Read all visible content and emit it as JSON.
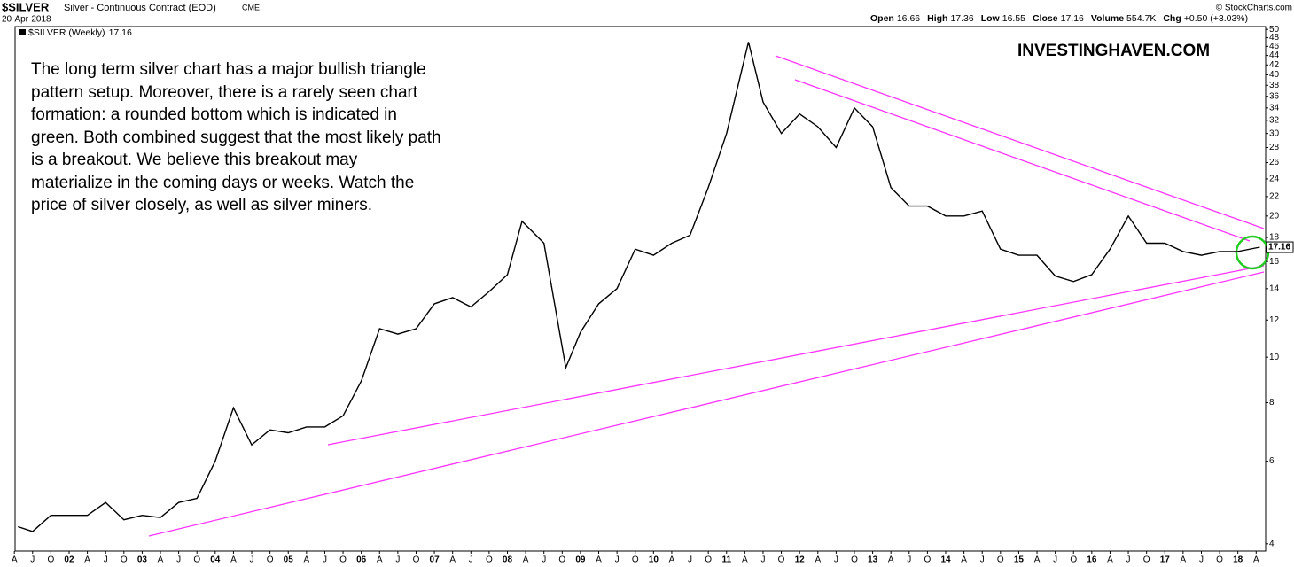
{
  "header": {
    "symbol": "$SILVER",
    "description": "Silver - Continuous Contract (EOD)",
    "exchange": "CME",
    "date": "20-Apr-2018",
    "quote": [
      {
        "label": "Open",
        "value": "16.66"
      },
      {
        "label": "High",
        "value": "17.36"
      },
      {
        "label": "Low",
        "value": "16.55"
      },
      {
        "label": "Close",
        "value": "17.16"
      },
      {
        "label": "Volume",
        "value": "554.7K"
      },
      {
        "label": "Chg",
        "value": "+0.50 (+3.03%)"
      }
    ],
    "copyright": "© StockCharts.com"
  },
  "watermark": "INVESTINGHAVEN.COM",
  "note_lines": [
    "The long term silver chart has a major bullish triangle",
    "pattern setup. Moreover, there is a rarely seen chart",
    "formation: a rounded bottom which is indicated in",
    "green. Both combined suggest that the most likely path",
    "is a breakout. We believe this breakout may",
    "materialize in the coming days or weeks. Watch the",
    "price of silver closely, as well as silver miners."
  ],
  "chart_data": {
    "type": "line",
    "log_scale": true,
    "grid": false,
    "x": [
      2001.3,
      2001.5,
      2001.75,
      2002,
      2002.25,
      2002.5,
      2002.75,
      2003,
      2003.25,
      2003.5,
      2003.75,
      2004,
      2004.25,
      2004.5,
      2004.75,
      2005,
      2005.25,
      2005.5,
      2005.75,
      2006,
      2006.25,
      2006.5,
      2006.75,
      2007,
      2007.25,
      2007.5,
      2007.75,
      2008,
      2008.2,
      2008.5,
      2008.8,
      2009,
      2009.25,
      2009.5,
      2009.75,
      2010,
      2010.25,
      2010.5,
      2010.75,
      2011,
      2011.3,
      2011.5,
      2011.75,
      2012,
      2012.25,
      2012.5,
      2012.75,
      2013,
      2013.25,
      2013.5,
      2013.75,
      2014,
      2014.25,
      2014.5,
      2014.75,
      2015,
      2015.25,
      2015.5,
      2015.75,
      2016,
      2016.25,
      2016.5,
      2016.75,
      2017,
      2017.25,
      2017.5,
      2017.75,
      2018,
      2018.3
    ],
    "series": [
      {
        "name": "$SILVER (Weekly)",
        "color": "#000000",
        "values": [
          4.35,
          4.25,
          4.6,
          4.6,
          4.6,
          4.9,
          4.5,
          4.6,
          4.55,
          4.9,
          5.0,
          6.0,
          7.8,
          6.5,
          7.0,
          6.9,
          7.1,
          7.1,
          7.5,
          8.9,
          11.5,
          11.2,
          11.5,
          13.0,
          13.4,
          12.8,
          13.8,
          15.0,
          19.5,
          17.5,
          9.5,
          11.3,
          13.0,
          14.0,
          17.0,
          16.5,
          17.5,
          18.2,
          23.0,
          30.0,
          47.0,
          35.0,
          30.0,
          33.0,
          31.0,
          28.0,
          34.0,
          31.0,
          23.0,
          21.0,
          21.0,
          20.0,
          20.0,
          20.5,
          17.0,
          16.5,
          16.5,
          14.9,
          14.5,
          15.0,
          17.0,
          20.0,
          17.5,
          17.5,
          16.8,
          16.5,
          16.8,
          16.8,
          17.16
        ]
      }
    ],
    "xlim": [
      2001.26,
      2018.38
    ],
    "ylim": [
      3.86,
      50.7
    ],
    "yticks": [
      4,
      6,
      8,
      10,
      12,
      14,
      16,
      18,
      20,
      22,
      24,
      26,
      28,
      30,
      32,
      34,
      36,
      38,
      40,
      42,
      44,
      46,
      48,
      50
    ],
    "xticks": [
      {
        "value": 2001.25,
        "label": "A"
      },
      {
        "value": 2001.5,
        "label": "J"
      },
      {
        "value": 2001.75,
        "label": "O"
      },
      {
        "value": 2002,
        "label": "02"
      },
      {
        "value": 2002.25,
        "label": "A"
      },
      {
        "value": 2002.5,
        "label": "J"
      },
      {
        "value": 2002.75,
        "label": "O"
      },
      {
        "value": 2003,
        "label": "03"
      },
      {
        "value": 2003.25,
        "label": "A"
      },
      {
        "value": 2003.5,
        "label": "J"
      },
      {
        "value": 2003.75,
        "label": "O"
      },
      {
        "value": 2004,
        "label": "04"
      },
      {
        "value": 2004.25,
        "label": "A"
      },
      {
        "value": 2004.5,
        "label": "J"
      },
      {
        "value": 2004.75,
        "label": "O"
      },
      {
        "value": 2005,
        "label": "05"
      },
      {
        "value": 2005.25,
        "label": "A"
      },
      {
        "value": 2005.5,
        "label": "J"
      },
      {
        "value": 2005.75,
        "label": "O"
      },
      {
        "value": 2006,
        "label": "06"
      },
      {
        "value": 2006.25,
        "label": "A"
      },
      {
        "value": 2006.5,
        "label": "J"
      },
      {
        "value": 2006.75,
        "label": "O"
      },
      {
        "value": 2007,
        "label": "07"
      },
      {
        "value": 2007.25,
        "label": "A"
      },
      {
        "value": 2007.5,
        "label": "J"
      },
      {
        "value": 2007.75,
        "label": "O"
      },
      {
        "value": 2008,
        "label": "08"
      },
      {
        "value": 2008.25,
        "label": "A"
      },
      {
        "value": 2008.5,
        "label": "J"
      },
      {
        "value": 2008.75,
        "label": "O"
      },
      {
        "value": 2009,
        "label": "09"
      },
      {
        "value": 2009.25,
        "label": "A"
      },
      {
        "value": 2009.5,
        "label": "J"
      },
      {
        "value": 2009.75,
        "label": "O"
      },
      {
        "value": 2010,
        "label": "10"
      },
      {
        "value": 2010.25,
        "label": "A"
      },
      {
        "value": 2010.5,
        "label": "J"
      },
      {
        "value": 2010.75,
        "label": "O"
      },
      {
        "value": 2011,
        "label": "11"
      },
      {
        "value": 2011.25,
        "label": "A"
      },
      {
        "value": 2011.5,
        "label": "J"
      },
      {
        "value": 2011.75,
        "label": "O"
      },
      {
        "value": 2012,
        "label": "12"
      },
      {
        "value": 2012.25,
        "label": "A"
      },
      {
        "value": 2012.5,
        "label": "J"
      },
      {
        "value": 2012.75,
        "label": "O"
      },
      {
        "value": 2013,
        "label": "13"
      },
      {
        "value": 2013.25,
        "label": "A"
      },
      {
        "value": 2013.5,
        "label": "J"
      },
      {
        "value": 2013.75,
        "label": "O"
      },
      {
        "value": 2014,
        "label": "14"
      },
      {
        "value": 2014.25,
        "label": "A"
      },
      {
        "value": 2014.5,
        "label": "J"
      },
      {
        "value": 2014.75,
        "label": "O"
      },
      {
        "value": 2015,
        "label": "15"
      },
      {
        "value": 2015.25,
        "label": "A"
      },
      {
        "value": 2015.5,
        "label": "J"
      },
      {
        "value": 2015.75,
        "label": "O"
      },
      {
        "value": 2016,
        "label": "16"
      },
      {
        "value": 2016.25,
        "label": "A"
      },
      {
        "value": 2016.5,
        "label": "J"
      },
      {
        "value": 2016.75,
        "label": "O"
      },
      {
        "value": 2017,
        "label": "17"
      },
      {
        "value": 2017.25,
        "label": "A"
      },
      {
        "value": 2017.5,
        "label": "J"
      },
      {
        "value": 2017.75,
        "label": "O"
      },
      {
        "value": 2018,
        "label": "18"
      },
      {
        "value": 2018.25,
        "label": "A"
      }
    ]
  }
}
